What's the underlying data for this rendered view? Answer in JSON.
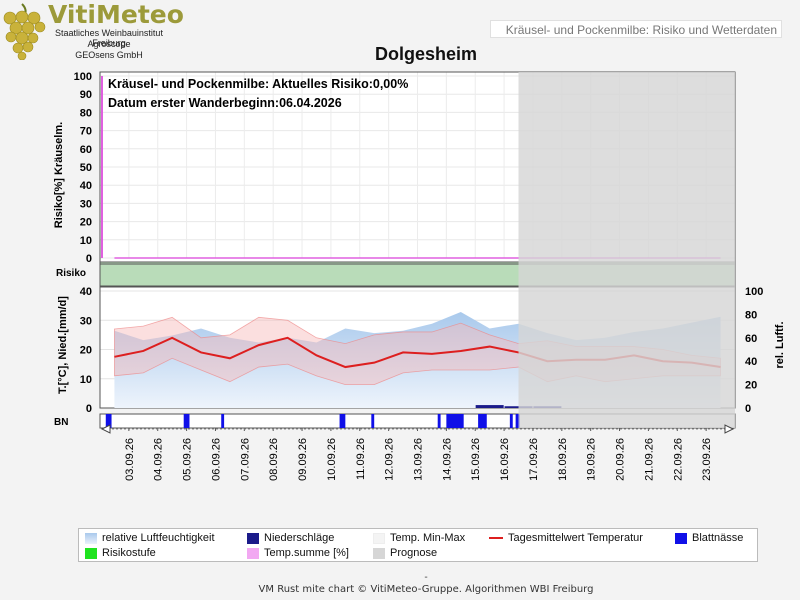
{
  "header": {
    "brand": "VitiMeteo",
    "sub1": "Staatliches Weinbauinstitut Freiburg",
    "sub2": "Agroscope",
    "sub3": "GEOsens GmbH",
    "topbar": "Kräusel- und Pockenmilbe: Risiko und Wetterdaten",
    "station": "Dolgesheim"
  },
  "colors": {
    "humidity": "#a9c9ec",
    "temp_band": "#f6b8b8",
    "temp_mean": "#dd1f1f",
    "rain": "#1b1b8a",
    "leaf_wet": "#1010e8",
    "risk_green": "#b9dcb9",
    "tempsum": "#e060e0",
    "forecast": "#d6d6d6",
    "brand": "#9c9a3a"
  },
  "chart_data": [
    {
      "type": "line",
      "title": "Kräusel- und Pockenmilbe: Aktuelles Risiko:0,00%",
      "annotation": "Datum erster Wanderbeginn:06.04.2026",
      "ylabel": "Risiko[%] Kräuselm.",
      "ylim": [
        0,
        100
      ],
      "yticks": [
        "0",
        "10",
        "20",
        "30",
        "40",
        "50",
        "60",
        "70",
        "80",
        "90",
        "100"
      ],
      "series": [
        {
          "name": "Temp.summe [%]",
          "values": [
            0,
            0,
            0,
            0,
            0,
            0,
            0,
            0,
            0,
            0,
            0,
            0,
            0,
            0,
            0,
            0,
            0,
            0,
            0,
            0,
            0,
            0
          ]
        }
      ]
    },
    {
      "type": "table",
      "label": "Risiko",
      "values": [
        0,
        0,
        0,
        0,
        0,
        0,
        0,
        0,
        0,
        0,
        0,
        0,
        0,
        0,
        0,
        0,
        0,
        0,
        0,
        0,
        0,
        0
      ]
    },
    {
      "type": "area",
      "ylabel": "T.[°C], Nied.[mm/d]",
      "y2label": "rel. Luftf.",
      "ylim": [
        0,
        40
      ],
      "y2lim": [
        0,
        100
      ],
      "yticks": [
        "0",
        "10",
        "20",
        "30",
        "40"
      ],
      "y2ticks": [
        "0",
        "20",
        "40",
        "60",
        "80",
        "100"
      ],
      "categories": [
        "03.09.26",
        "04.09.26",
        "05.09.26",
        "06.09.26",
        "07.09.26",
        "08.09.26",
        "09.09.26",
        "10.09.26",
        "11.09.26",
        "12.09.26",
        "13.09.26",
        "14.09.26",
        "15.09.26",
        "16.09.26",
        "17.09.26",
        "18.09.26",
        "19.09.26",
        "20.09.26",
        "21.09.26",
        "22.09.26",
        "23.09.26"
      ],
      "x_positions": [
        2.5,
        3.5,
        4.5,
        5.5,
        6.5,
        7.5,
        8.5,
        9.5,
        10.5,
        11.5,
        12.5,
        13.5,
        14.5,
        15.5,
        16.5,
        17.5,
        18.5,
        19.5,
        20.5,
        21.5,
        22.5,
        23.5
      ],
      "humidity": [
        66,
        58,
        62,
        68,
        60,
        56,
        60,
        56,
        68,
        64,
        66,
        72,
        82,
        68,
        72,
        64,
        58,
        60,
        65,
        68,
        73,
        78
      ],
      "temp_max": [
        27,
        28,
        31,
        24,
        25,
        31,
        30,
        24,
        22,
        25,
        26,
        26,
        29,
        25,
        22,
        23,
        21,
        21,
        21,
        20,
        18,
        17
      ],
      "temp_mean": [
        17.5,
        19.5,
        24,
        19,
        17,
        21.5,
        24,
        18,
        14,
        15.5,
        19,
        18.5,
        19.5,
        21,
        19,
        16,
        16.5,
        16.5,
        18,
        16,
        15.5,
        14
      ],
      "temp_min": [
        11,
        12,
        17,
        13,
        9,
        14,
        15,
        11,
        8,
        8,
        12,
        13,
        13,
        13,
        14,
        9,
        11,
        9,
        10,
        11,
        11,
        11
      ],
      "rain": [
        0,
        0,
        0,
        0,
        0,
        0,
        0,
        0,
        0,
        0,
        0,
        0,
        0,
        1,
        0.6,
        0.6,
        0,
        0,
        0,
        0,
        0,
        0
      ],
      "leaf_wet_bars": [
        [
          2.2,
          2.4
        ],
        [
          4.9,
          5.1
        ],
        [
          6.2,
          6.3
        ],
        [
          10.3,
          10.5
        ],
        [
          11.4,
          11.5
        ],
        [
          13.7,
          13.8
        ],
        [
          14.0,
          14.6
        ],
        [
          15.1,
          15.4
        ],
        [
          16.2,
          16.3
        ],
        [
          16.4,
          16.55
        ]
      ],
      "forecast_from": 16.5,
      "xrange": [
        2,
        24
      ]
    }
  ],
  "axis_labels": {
    "risk_row": "Risiko",
    "bn_row": "BN"
  },
  "legend": [
    {
      "label": "relative Luftfeuchtigkeit",
      "kind": "gradient"
    },
    {
      "label": "Niederschläge",
      "kind": "rain"
    },
    {
      "label": "Temp. Min-Max",
      "kind": "band"
    },
    {
      "label": "Tagesmittelwert Temperatur",
      "kind": "line"
    },
    {
      "label": "Blattnässe",
      "kind": "leaf"
    },
    {
      "label": "Risikostufe",
      "kind": "risk"
    },
    {
      "label": "Temp.summe [%]",
      "kind": "tempsum"
    },
    {
      "label": "Prognose",
      "kind": "forecast"
    }
  ],
  "footer": {
    "dash": "-",
    "credits": "VM Rust mite chart © VitiMeteo-Gruppe. Algorithmen WBI Freiburg"
  }
}
